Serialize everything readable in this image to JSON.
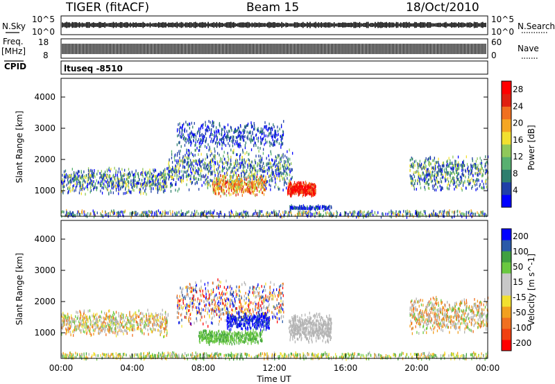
{
  "header": {
    "station": "TIGER (fitACF)",
    "beam": "Beam 15",
    "date": "18/Oct/2010"
  },
  "strips": {
    "nsky_label": "N.Sky",
    "nsky_ticks": [
      "10^5",
      "10^0"
    ],
    "nsearch_label": "N.Search",
    "nsearch_ticks": [
      "10^5",
      "10^0"
    ],
    "freq_label": "Freq.",
    "freq_unit": "[MHz]",
    "freq_ticks": [
      "18",
      "8"
    ],
    "nave_label": "Nave",
    "nave_ticks": [
      "60",
      "0"
    ],
    "cpid_label": "CPID",
    "cpid_text": "ltuseq -8510"
  },
  "colors": {
    "power_scale": [
      "#0000ff",
      "#1f3fa8",
      "#2e7e6e",
      "#58b070",
      "#90c85a",
      "#f2e030",
      "#f5a623",
      "#f07020",
      "#e02010",
      "#ff0000"
    ],
    "velocity_scale": [
      "#ff0000",
      "#f04010",
      "#f07020",
      "#f2a020",
      "#f2e030",
      "#c8c8c8",
      "#c8c8c8",
      "#6ac840",
      "#40a040",
      "#2a5aa8",
      "#0000ff"
    ],
    "ground_scatter": "#b4b4b4"
  },
  "chart_data": [
    {
      "type": "heatmap",
      "name": "power",
      "ylabel": "Slant Range [km]",
      "ylim": [
        180,
        4600
      ],
      "yticks": [
        1000,
        2000,
        3000,
        4000
      ],
      "xlim": [
        0,
        24
      ],
      "xticks": [
        "00:00",
        "04:00",
        "08:00",
        "12:00",
        "16:00",
        "20:00",
        "00:00"
      ],
      "colorbar": {
        "label": "Power [dB]",
        "ticks": [
          4,
          8,
          12,
          16,
          20,
          24,
          28
        ],
        "range": [
          0,
          30
        ]
      }
    },
    {
      "type": "heatmap",
      "name": "velocity",
      "ylabel": "Slant Range [km]",
      "ylim": [
        180,
        4600
      ],
      "yticks": [
        1000,
        2000,
        3000,
        4000
      ],
      "xlim": [
        0,
        24
      ],
      "xticks": [
        "00:00",
        "04:00",
        "08:00",
        "12:00",
        "16:00",
        "20:00",
        "00:00"
      ],
      "xlabel": "Time UT",
      "colorbar": {
        "label": "Velocity [m s^-1]",
        "ticks": [
          "200",
          "100",
          "50",
          "15",
          "-15",
          "-50",
          "-100",
          "-200"
        ]
      }
    }
  ]
}
